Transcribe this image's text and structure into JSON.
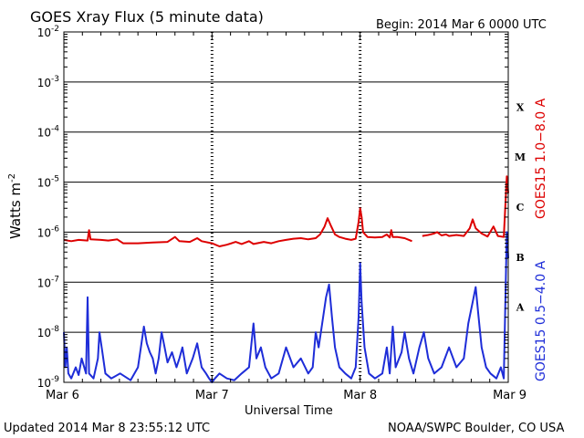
{
  "header": {
    "title": "GOES Xray Flux (5 minute data)",
    "begin": "Begin:  2014 Mar 6 0000 UTC"
  },
  "footer": {
    "updated": "Updated 2014 Mar  8 23:55:12 UTC",
    "source": "NOAA/SWPC Boulder, CO USA"
  },
  "chart_data": {
    "type": "line",
    "title": "GOES Xray Flux (5 minute data)",
    "xlabel": "Universal Time",
    "ylabel": "Watts m",
    "ylabel_sup": "-2",
    "y_scale": "log",
    "ylim": [
      1e-09,
      0.01
    ],
    "xlim": [
      "2014-03-06",
      "2014-03-09"
    ],
    "grid": true,
    "x_ticks": [
      {
        "day": 0,
        "label": "Mar 6"
      },
      {
        "day": 1,
        "label": "Mar 7"
      },
      {
        "day": 2,
        "label": "Mar 8"
      },
      {
        "day": 3,
        "label": "Mar 9"
      }
    ],
    "y_ticks": [
      {
        "value": 0.01,
        "base": "10",
        "exp": "-2"
      },
      {
        "value": 0.001,
        "base": "10",
        "exp": "-3"
      },
      {
        "value": 0.0001,
        "base": "10",
        "exp": "-4"
      },
      {
        "value": 1e-05,
        "base": "10",
        "exp": "-5"
      },
      {
        "value": 1e-06,
        "base": "10",
        "exp": "-6"
      },
      {
        "value": 1e-07,
        "base": "10",
        "exp": "-7"
      },
      {
        "value": 1e-08,
        "base": "10",
        "exp": "-8"
      },
      {
        "value": 1e-09,
        "base": "10",
        "exp": "-9"
      }
    ],
    "flare_classes": [
      {
        "label": "X",
        "value": 0.000316
      },
      {
        "label": "M",
        "value": 3.16e-05
      },
      {
        "label": "C",
        "value": 3.16e-06
      },
      {
        "label": "B",
        "value": 3.16e-07
      },
      {
        "label": "A",
        "value": 3.16e-08
      }
    ],
    "series": [
      {
        "name": "GOES15 1.0−8.0 A",
        "color": "#dd0000",
        "points": [
          [
            0.0,
            7e-07
          ],
          [
            0.05,
            6.6e-07
          ],
          [
            0.1,
            7e-07
          ],
          [
            0.16,
            6.8e-07
          ],
          [
            0.17,
            1.1e-06
          ],
          [
            0.18,
            7.2e-07
          ],
          [
            0.25,
            7e-07
          ],
          [
            0.3,
            6.8e-07
          ],
          [
            0.36,
            7.2e-07
          ],
          [
            0.4,
            6e-07
          ],
          [
            0.5,
            6e-07
          ],
          [
            0.6,
            6.2e-07
          ],
          [
            0.7,
            6.4e-07
          ],
          [
            0.75,
            8e-07
          ],
          [
            0.78,
            6.6e-07
          ],
          [
            0.85,
            6.4e-07
          ],
          [
            0.9,
            7.6e-07
          ],
          [
            0.93,
            6.6e-07
          ],
          [
            1.0,
            6e-07
          ],
          [
            1.05,
            5.2e-07
          ],
          [
            1.1,
            5.6e-07
          ],
          [
            1.16,
            6.4e-07
          ],
          [
            1.2,
            5.8e-07
          ],
          [
            1.25,
            6.6e-07
          ],
          [
            1.28,
            5.8e-07
          ],
          [
            1.35,
            6.4e-07
          ],
          [
            1.4,
            6e-07
          ],
          [
            1.45,
            6.6e-07
          ],
          [
            1.5,
            7e-07
          ],
          [
            1.55,
            7.4e-07
          ],
          [
            1.6,
            7.6e-07
          ],
          [
            1.65,
            7.2e-07
          ],
          [
            1.7,
            7.6e-07
          ],
          [
            1.73,
            9e-07
          ],
          [
            1.76,
            1.3e-06
          ],
          [
            1.78,
            1.9e-06
          ],
          [
            1.8,
            1.4e-06
          ],
          [
            1.83,
            9e-07
          ],
          [
            1.86,
            8e-07
          ],
          [
            1.9,
            7.4e-07
          ],
          [
            1.94,
            7e-07
          ],
          [
            1.97,
            7.4e-07
          ],
          [
            1.99,
            1.6e-06
          ],
          [
            2.0,
            3e-06
          ],
          [
            2.01,
            2e-06
          ],
          [
            2.02,
            1e-06
          ],
          [
            2.05,
            8e-07
          ],
          [
            2.1,
            7.8e-07
          ],
          [
            2.15,
            8e-07
          ],
          [
            2.18,
            9e-07
          ],
          [
            2.2,
            7.8e-07
          ],
          [
            2.21,
            1.1e-06
          ],
          [
            2.22,
            8e-07
          ],
          [
            2.25,
            8e-07
          ],
          [
            2.3,
            7.6e-07
          ],
          [
            2.33,
            7e-07
          ],
          [
            2.35,
            6.6e-07
          ],
          [
            2.4,
            null
          ],
          [
            2.42,
            8.4e-07
          ],
          [
            2.46,
            8.8e-07
          ],
          [
            2.5,
            9.4e-07
          ],
          [
            2.52,
            1e-06
          ],
          [
            2.55,
            8.6e-07
          ],
          [
            2.58,
            9e-07
          ],
          [
            2.6,
            8.4e-07
          ],
          [
            2.65,
            8.8e-07
          ],
          [
            2.7,
            8.4e-07
          ],
          [
            2.74,
            1.2e-06
          ],
          [
            2.76,
            1.8e-06
          ],
          [
            2.78,
            1.2e-06
          ],
          [
            2.82,
            9.4e-07
          ],
          [
            2.86,
            8.2e-07
          ],
          [
            2.9,
            1.3e-06
          ],
          [
            2.93,
            8.4e-07
          ],
          [
            2.97,
            8e-07
          ],
          [
            2.99,
            1.3e-05
          ],
          [
            3.0,
            6e-06
          ]
        ]
      },
      {
        "name": "GOES15 0.5−4.0 A",
        "color": "#1e2dd8",
        "points": [
          [
            0.0,
            1e-08
          ],
          [
            0.01,
            2e-09
          ],
          [
            0.02,
            5e-09
          ],
          [
            0.03,
            1.5e-09
          ],
          [
            0.05,
            1.2e-09
          ],
          [
            0.08,
            2e-09
          ],
          [
            0.1,
            1.4e-09
          ],
          [
            0.12,
            3e-09
          ],
          [
            0.15,
            1.5e-09
          ],
          [
            0.16,
            5e-08
          ],
          [
            0.17,
            1.5e-09
          ],
          [
            0.2,
            1.2e-09
          ],
          [
            0.23,
            3e-09
          ],
          [
            0.24,
            1e-08
          ],
          [
            0.26,
            4e-09
          ],
          [
            0.28,
            1.5e-09
          ],
          [
            0.32,
            1.2e-09
          ],
          [
            0.38,
            1.5e-09
          ],
          [
            0.45,
            1.1e-09
          ],
          [
            0.5,
            2e-09
          ],
          [
            0.52,
            5e-09
          ],
          [
            0.54,
            1.3e-08
          ],
          [
            0.56,
            6e-09
          ],
          [
            0.58,
            4e-09
          ],
          [
            0.6,
            3e-09
          ],
          [
            0.62,
            1.5e-09
          ],
          [
            0.64,
            3e-09
          ],
          [
            0.66,
            1e-08
          ],
          [
            0.68,
            5e-09
          ],
          [
            0.7,
            2.5e-09
          ],
          [
            0.73,
            4e-09
          ],
          [
            0.76,
            2e-09
          ],
          [
            0.78,
            3e-09
          ],
          [
            0.8,
            5e-09
          ],
          [
            0.83,
            1.5e-09
          ],
          [
            0.87,
            3e-09
          ],
          [
            0.9,
            6e-09
          ],
          [
            0.93,
            2e-09
          ],
          [
            0.96,
            1.5e-09
          ],
          [
            0.98,
            1.2e-09
          ],
          [
            1.0,
            1e-09
          ],
          [
            1.02,
            1.2e-09
          ],
          [
            1.05,
            1.5e-09
          ],
          [
            1.1,
            1.2e-09
          ],
          [
            1.15,
            1.1e-09
          ],
          [
            1.2,
            1.5e-09
          ],
          [
            1.25,
            2e-09
          ],
          [
            1.28,
            1.5e-08
          ],
          [
            1.3,
            3e-09
          ],
          [
            1.33,
            5e-09
          ],
          [
            1.36,
            2e-09
          ],
          [
            1.4,
            1.2e-09
          ],
          [
            1.45,
            1.5e-09
          ],
          [
            1.5,
            5e-09
          ],
          [
            1.55,
            2e-09
          ],
          [
            1.6,
            3e-09
          ],
          [
            1.65,
            1.5e-09
          ],
          [
            1.68,
            2e-09
          ],
          [
            1.7,
            1e-08
          ],
          [
            1.72,
            5e-09
          ],
          [
            1.75,
            2e-08
          ],
          [
            1.77,
            5e-08
          ],
          [
            1.79,
            9e-08
          ],
          [
            1.81,
            2e-08
          ],
          [
            1.83,
            5e-09
          ],
          [
            1.86,
            2e-09
          ],
          [
            1.9,
            1.5e-09
          ],
          [
            1.94,
            1.2e-09
          ],
          [
            1.97,
            2e-09
          ],
          [
            1.99,
            2e-08
          ],
          [
            2.0,
            2.4e-07
          ],
          [
            2.01,
            4e-08
          ],
          [
            2.03,
            5e-09
          ],
          [
            2.06,
            1.5e-09
          ],
          [
            2.1,
            1.2e-09
          ],
          [
            2.15,
            1.5e-09
          ],
          [
            2.18,
            5e-09
          ],
          [
            2.2,
            1.5e-09
          ],
          [
            2.22,
            1.3e-08
          ],
          [
            2.24,
            2e-09
          ],
          [
            2.28,
            4e-09
          ],
          [
            2.3,
            1e-08
          ],
          [
            2.33,
            3e-09
          ],
          [
            2.36,
            1.5e-09
          ],
          [
            2.4,
            5e-09
          ],
          [
            2.43,
            1e-08
          ],
          [
            2.46,
            3e-09
          ],
          [
            2.5,
            1.5e-09
          ],
          [
            2.55,
            2e-09
          ],
          [
            2.6,
            5e-09
          ],
          [
            2.65,
            2e-09
          ],
          [
            2.7,
            3e-09
          ],
          [
            2.73,
            1.5e-08
          ],
          [
            2.76,
            4e-08
          ],
          [
            2.78,
            8e-08
          ],
          [
            2.8,
            2e-08
          ],
          [
            2.82,
            5e-09
          ],
          [
            2.85,
            2e-09
          ],
          [
            2.88,
            1.5e-09
          ],
          [
            2.92,
            1.2e-09
          ],
          [
            2.95,
            2e-09
          ],
          [
            2.97,
            1.2e-09
          ],
          [
            2.99,
            1e-06
          ],
          [
            3.0,
            3e-07
          ]
        ]
      }
    ]
  }
}
